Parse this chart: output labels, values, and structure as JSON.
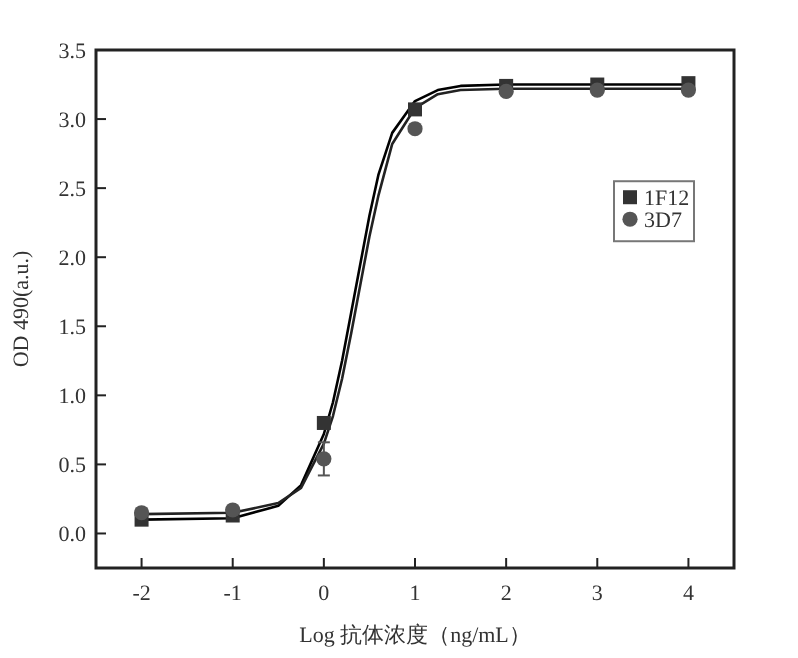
{
  "chart_data": {
    "type": "scatter",
    "xlabel": "Log 抗体浓度（ng/mL）",
    "ylabel": "OD 490(a.u.)",
    "xlim": [
      -2.5,
      4.5
    ],
    "ylim": [
      -0.25,
      3.5
    ],
    "xticks": [
      -2,
      -1,
      0,
      1,
      2,
      3,
      4
    ],
    "yticks": [
      {
        "value": 0,
        "label": "0.0"
      },
      {
        "value": 0.5,
        "label": "0.5"
      },
      {
        "value": 1,
        "label": "1.0"
      },
      {
        "value": 1.5,
        "label": "1.5"
      },
      {
        "value": 2,
        "label": "2.0"
      },
      {
        "value": 2.5,
        "label": "2.5"
      },
      {
        "value": 3,
        "label": "3.0"
      },
      {
        "value": 3.5,
        "label": "3.5"
      }
    ],
    "x": [
      -2,
      -1,
      0,
      1,
      2,
      3,
      4
    ],
    "legend": "right",
    "grid": false,
    "series": [
      {
        "name": "1F12",
        "marker": "square",
        "color": "#333333",
        "values": [
          0.1,
          0.13,
          0.8,
          3.07,
          3.24,
          3.25,
          3.26
        ]
      },
      {
        "name": "3D7",
        "marker": "circle",
        "color": "#555555",
        "values": [
          0.15,
          0.17,
          0.54,
          2.93,
          3.2,
          3.21,
          3.21
        ],
        "errors": [
          null,
          null,
          0.12,
          null,
          null,
          null,
          null
        ]
      },
      {
        "type": "line",
        "color": "#000000",
        "x": [
          -2,
          -1,
          -0.5,
          -0.25,
          0,
          0.1,
          0.2,
          0.3,
          0.4,
          0.5,
          0.6,
          0.75,
          1,
          1.25,
          1.5,
          2,
          4
        ],
        "values": [
          0.1,
          0.11,
          0.2,
          0.35,
          0.72,
          0.95,
          1.25,
          1.6,
          1.95,
          2.3,
          2.6,
          2.9,
          3.13,
          3.21,
          3.24,
          3.25,
          3.25
        ]
      },
      {
        "type": "line",
        "color": "#222222",
        "x": [
          -2,
          -1,
          -0.5,
          -0.25,
          0,
          0.1,
          0.2,
          0.3,
          0.4,
          0.5,
          0.6,
          0.75,
          1,
          1.25,
          1.5,
          2,
          4
        ],
        "values": [
          0.14,
          0.15,
          0.22,
          0.33,
          0.65,
          0.85,
          1.12,
          1.45,
          1.8,
          2.15,
          2.45,
          2.82,
          3.08,
          3.18,
          3.21,
          3.22,
          3.22
        ]
      }
    ]
  }
}
